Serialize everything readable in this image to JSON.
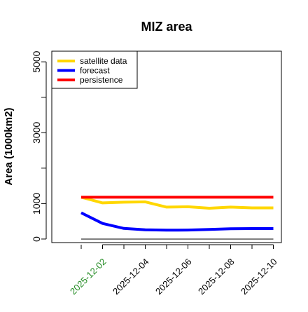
{
  "chart_data": {
    "type": "line",
    "title": "MIZ area",
    "xlabel": "",
    "ylabel": "Area (1000km2)",
    "x": [
      "2025-12-01",
      "2025-12-02",
      "2025-12-03",
      "2025-12-04",
      "2025-12-05",
      "2025-12-06",
      "2025-12-07",
      "2025-12-08",
      "2025-12-09",
      "2025-12-10"
    ],
    "xticks": [
      "2025-12-02",
      "2025-12-04",
      "2025-12-06",
      "2025-12-08",
      "2025-12-10"
    ],
    "highlight_xtick": "2025-12-02",
    "yticks": [
      0,
      1000,
      3000,
      5000
    ],
    "ylim": [
      -100,
      5300
    ],
    "series": [
      {
        "name": "satellite data",
        "color": "#FFD700",
        "values": [
          1180,
          1020,
          1040,
          1050,
          900,
          910,
          870,
          900,
          880,
          880
        ]
      },
      {
        "name": "forecast",
        "color": "#0000FF",
        "values": [
          740,
          440,
          300,
          260,
          250,
          255,
          270,
          290,
          295,
          295
        ]
      },
      {
        "name": "persistence",
        "color": "#FF0000",
        "values": [
          1180,
          1180,
          1180,
          1180,
          1180,
          1180,
          1180,
          1180,
          1180,
          1180
        ]
      }
    ],
    "reference_line": {
      "color": "#808080",
      "value": 0
    },
    "legend_position": "top-left",
    "grid": false
  }
}
